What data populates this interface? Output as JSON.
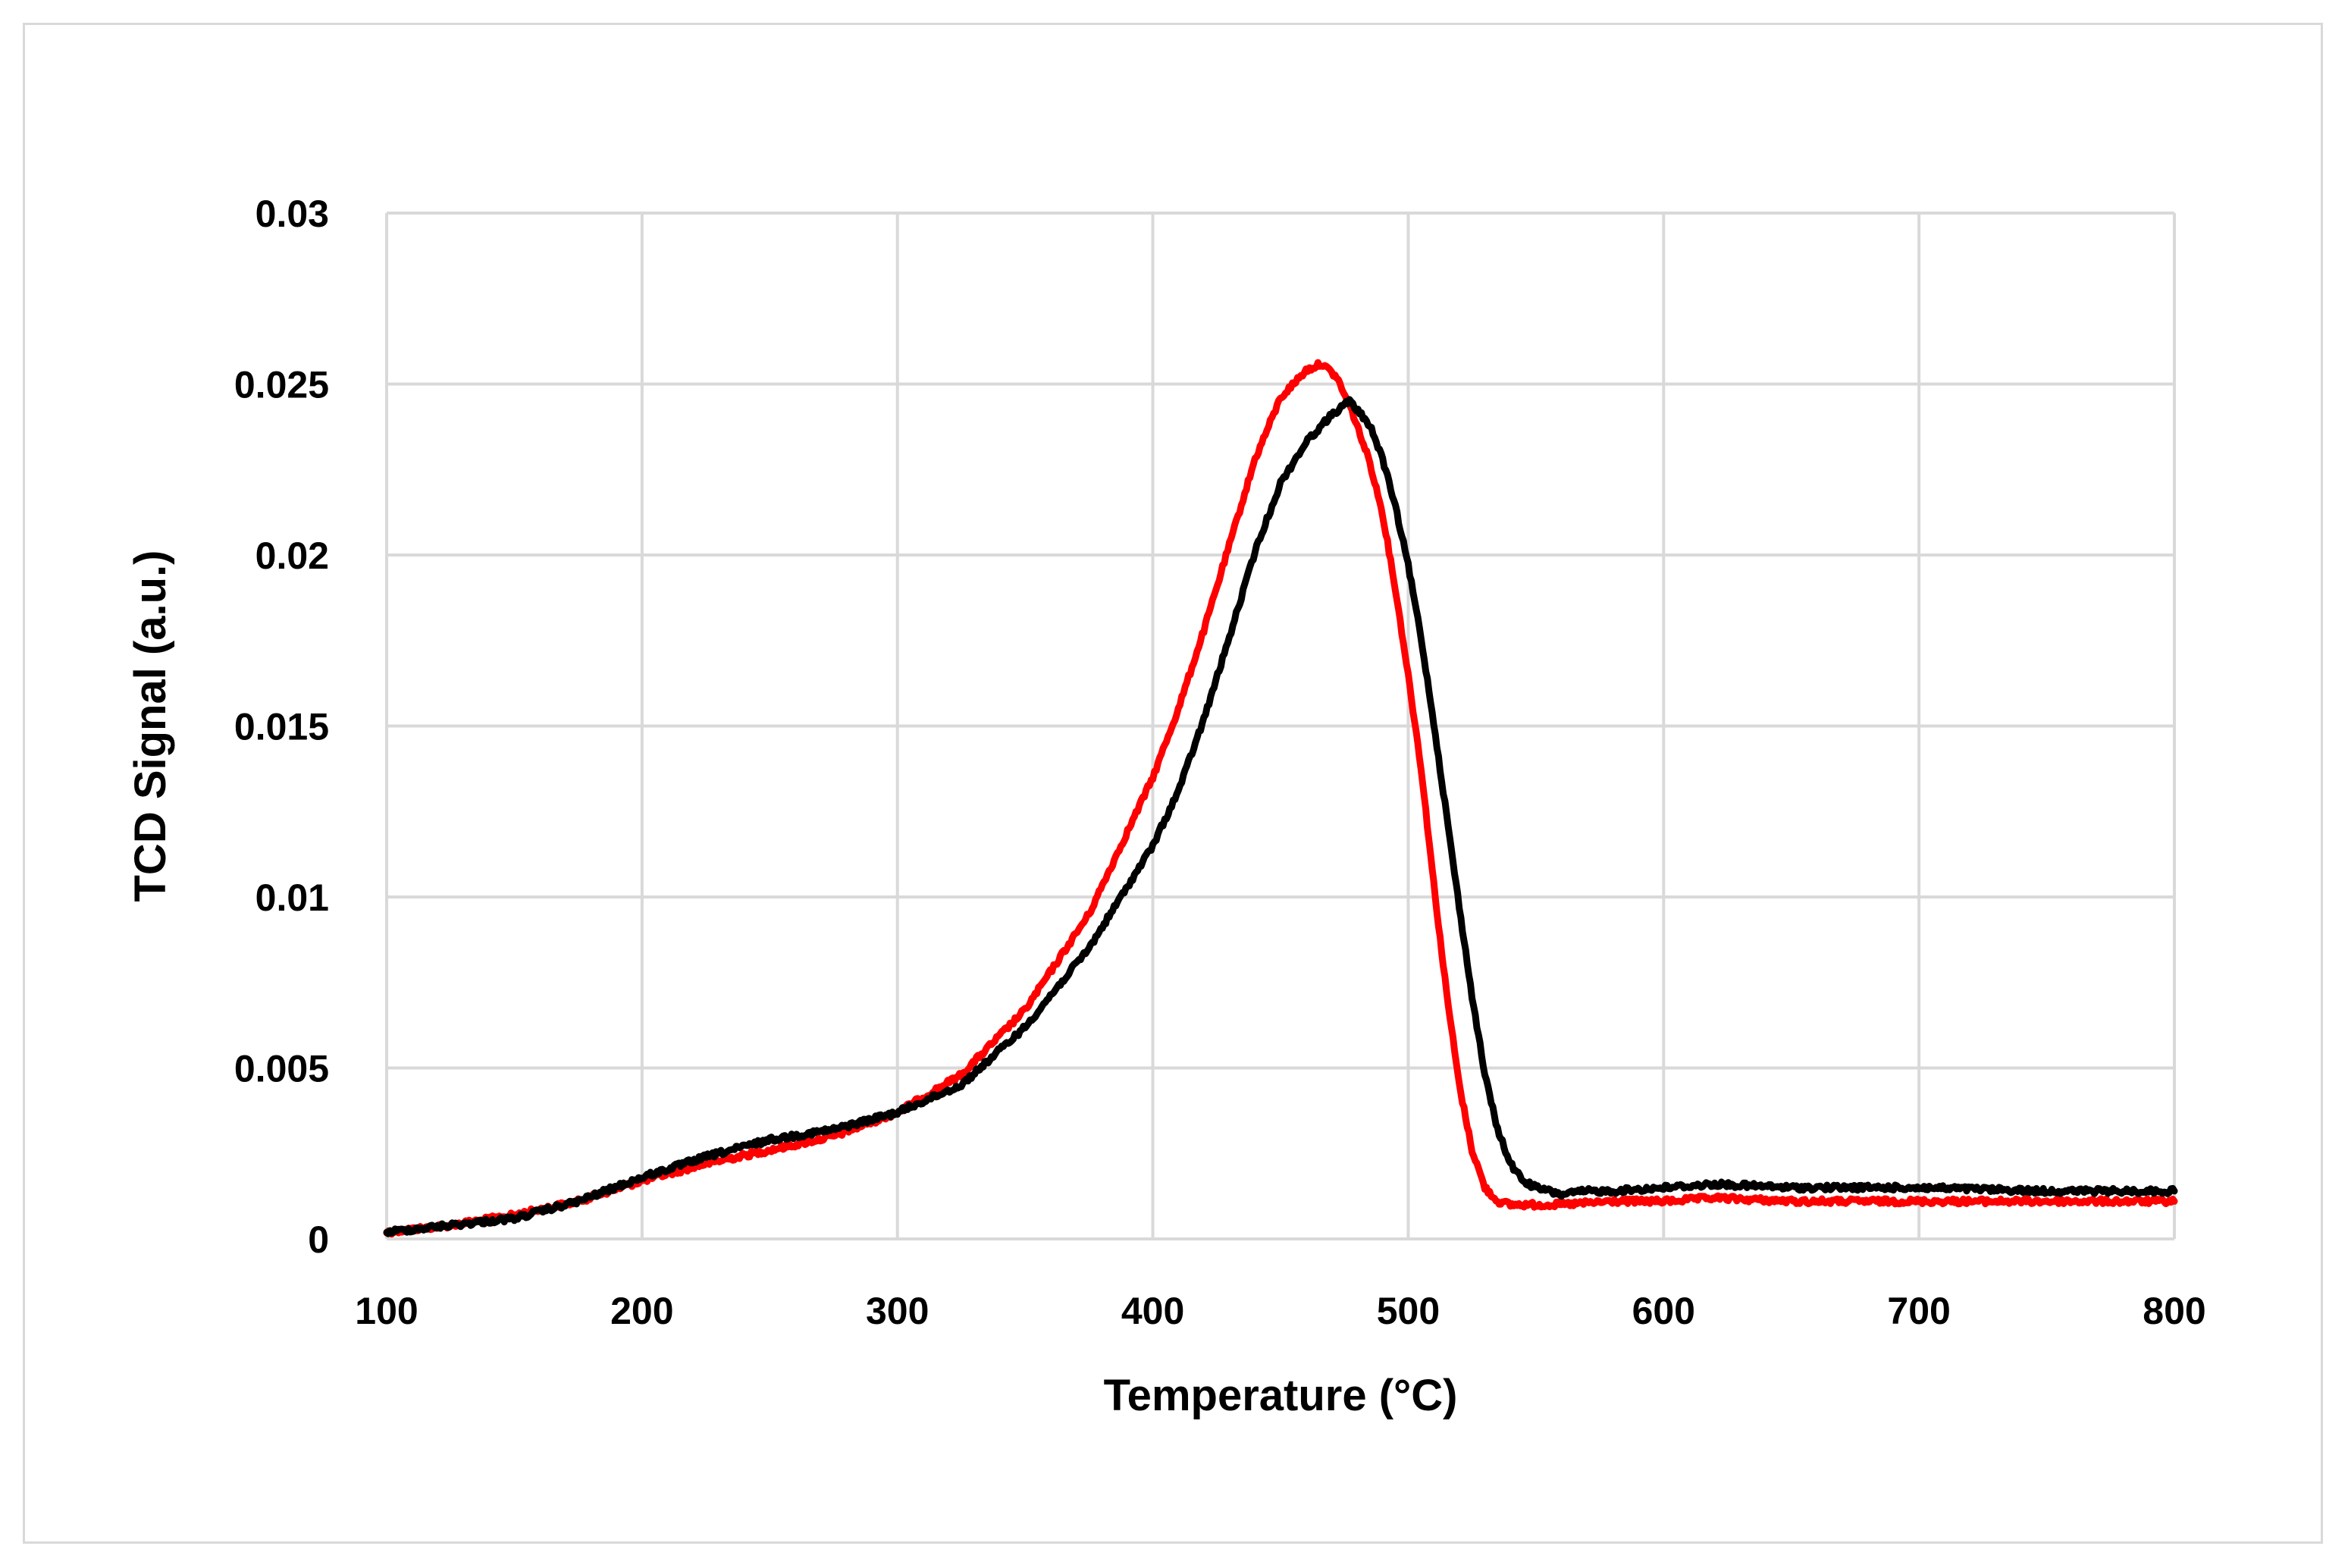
{
  "chart_data": {
    "type": "line",
    "title": "",
    "xlabel": "Temperature (°C)",
    "ylabel": "TCD Signal (a.u.)",
    "xlim": [
      100,
      800
    ],
    "ylim": [
      0,
      0.03
    ],
    "x_ticks": [
      100,
      200,
      300,
      400,
      500,
      600,
      700,
      800
    ],
    "x_tick_labels": [
      "100",
      "200",
      "300",
      "400",
      "500",
      "600",
      "700",
      "800"
    ],
    "y_ticks": [
      0,
      0.005,
      0.01,
      0.015,
      0.02,
      0.025,
      0.03
    ],
    "y_tick_labels": [
      "0",
      "0.005",
      "0.01",
      "0.015",
      "0.02",
      "0.025",
      "0.03"
    ],
    "grid": true,
    "legend": "none",
    "series": [
      {
        "name": "red",
        "color": "#ff0000",
        "x": [
          100,
          125,
          150,
          175,
          200,
          225,
          250,
          275,
          300,
          325,
          350,
          375,
          400,
          410,
          420,
          430,
          440,
          450,
          460,
          466,
          472,
          478,
          485,
          490,
          495,
          500,
          505,
          510,
          515,
          520,
          525,
          530,
          535,
          540,
          550,
          560,
          580,
          600,
          620,
          650,
          700,
          750,
          800
        ],
        "y": [
          0.0002,
          0.0004,
          0.0007,
          0.0011,
          0.0017,
          0.0022,
          0.0026,
          0.003,
          0.0037,
          0.0048,
          0.0067,
          0.0095,
          0.0135,
          0.0155,
          0.0178,
          0.0203,
          0.0228,
          0.0246,
          0.0254,
          0.0256,
          0.0252,
          0.0242,
          0.0227,
          0.0212,
          0.019,
          0.0165,
          0.0138,
          0.0104,
          0.0072,
          0.0045,
          0.0026,
          0.0015,
          0.0011,
          0.001,
          0.001,
          0.001,
          0.0011,
          0.0011,
          0.0012,
          0.0011,
          0.0011,
          0.0011,
          0.0011
        ]
      },
      {
        "name": "black",
        "color": "#000000",
        "x": [
          100,
          125,
          150,
          175,
          200,
          225,
          250,
          275,
          300,
          325,
          350,
          375,
          400,
          410,
          420,
          430,
          440,
          450,
          460,
          470,
          477,
          485,
          490,
          495,
          500,
          505,
          510,
          515,
          520,
          525,
          530,
          535,
          540,
          545,
          550,
          555,
          560,
          570,
          580,
          600,
          620,
          650,
          700,
          750,
          800
        ],
        "y": [
          0.0002,
          0.0004,
          0.0006,
          0.0011,
          0.0018,
          0.0024,
          0.0029,
          0.0032,
          0.0037,
          0.0045,
          0.0062,
          0.0085,
          0.0115,
          0.0131,
          0.0152,
          0.0176,
          0.0201,
          0.0221,
          0.0233,
          0.0241,
          0.0245,
          0.0238,
          0.0228,
          0.0214,
          0.0197,
          0.0176,
          0.0151,
          0.0124,
          0.0097,
          0.0071,
          0.0048,
          0.0032,
          0.0022,
          0.0017,
          0.0015,
          0.0014,
          0.0013,
          0.0014,
          0.0014,
          0.0015,
          0.0016,
          0.0015,
          0.0015,
          0.0014,
          0.0014
        ]
      }
    ]
  }
}
